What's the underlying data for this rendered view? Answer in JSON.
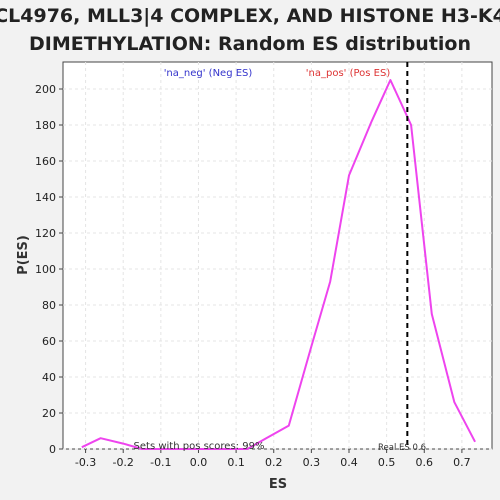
{
  "chart_data": {
    "type": "line",
    "title_lines": [
      "CL4976, MLL3|4 COMPLEX, AND HISTONE H3-K4",
      "DIMETHYLATION: Random ES distribution"
    ],
    "xlabel": "ES",
    "ylabel": "P(ES)",
    "xlim": [
      -0.36,
      0.78
    ],
    "ylim": [
      0,
      215
    ],
    "xticks": [
      "-0.3",
      "-0.2",
      "-0.1",
      "0.0",
      "0.1",
      "0.2",
      "0.3",
      "0.4",
      "0.5",
      "0.6",
      "0.7"
    ],
    "yticks": [
      "0",
      "20",
      "40",
      "60",
      "80",
      "100",
      "120",
      "140",
      "160",
      "180",
      "200"
    ],
    "grid": true,
    "series": [
      {
        "color": "#ee44ee",
        "x": [
          -0.31,
          -0.26,
          -0.2,
          -0.15,
          -0.1,
          -0.04,
          0.02,
          0.08,
          0.13,
          0.18,
          0.24,
          0.3,
          0.35,
          0.4,
          0.46,
          0.51,
          0.565,
          0.62,
          0.68,
          0.735
        ],
        "y": [
          1,
          6,
          3,
          0,
          0,
          0,
          0,
          0,
          0,
          6,
          13,
          57,
          93,
          152,
          182,
          205,
          180,
          75,
          26,
          4
        ]
      }
    ],
    "legend": {
      "neg": {
        "label": "'na_neg' (Neg ES)",
        "color": "#3333cc"
      },
      "pos": {
        "label": "'na_pos' (Pos ES)",
        "color": "#dd3333"
      }
    },
    "real_es": {
      "value": 0.555,
      "label": "Real ES 0.6"
    },
    "annotation": "Sets with pos scores: 99%"
  }
}
